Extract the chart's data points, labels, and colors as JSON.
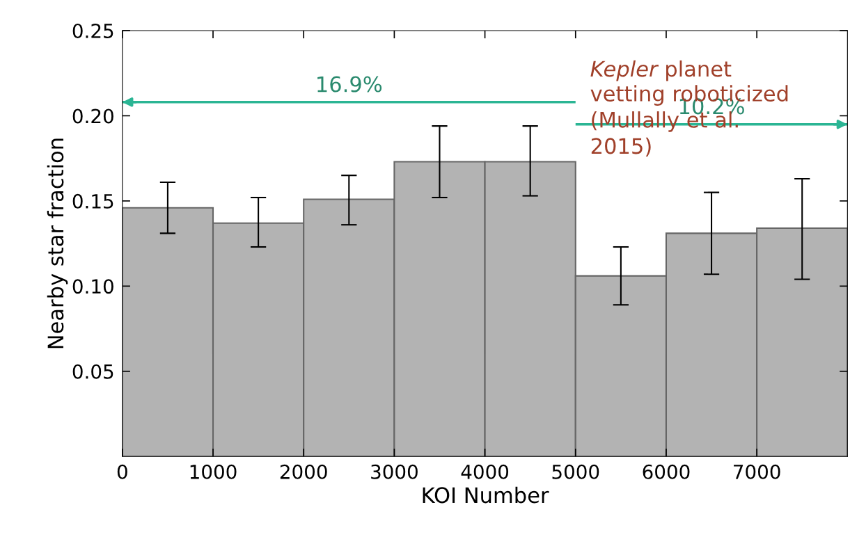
{
  "chart_data": {
    "type": "histogram",
    "xlabel": "KOI Number",
    "ylabel": "Nearby star fraction",
    "bins": [
      0,
      1000,
      2000,
      3000,
      4000,
      5000,
      6000,
      7000,
      8000
    ],
    "values": [
      0.146,
      0.137,
      0.151,
      0.173,
      0.173,
      0.106,
      0.131,
      0.134
    ],
    "errors": [
      [
        0.131,
        0.161
      ],
      [
        0.123,
        0.152
      ],
      [
        0.136,
        0.165
      ],
      [
        0.152,
        0.194
      ],
      [
        0.153,
        0.194
      ],
      [
        0.089,
        0.123
      ],
      [
        0.107,
        0.155
      ],
      [
        0.104,
        0.163
      ]
    ],
    "color": "#b3b3b3",
    "series": [
      {
        "type": "line",
        "name": "16.9%",
        "x": [
          5000,
          0
        ],
        "values": [
          0.208,
          0.208
        ],
        "color": "#2bb594"
      },
      {
        "type": "line",
        "name": "10.2%",
        "x": [
          5000,
          8000
        ],
        "values": [
          0.195,
          0.195
        ],
        "color": "#2bb594"
      }
    ],
    "xlim": [
      0,
      8000
    ],
    "ylim": [
      0,
      0.25
    ],
    "xticks": [
      0,
      1000,
      2000,
      3000,
      4000,
      5000,
      6000,
      7000
    ],
    "yticks": [
      {
        "value": 0.05,
        "label": "0.05"
      },
      {
        "value": 0.1,
        "label": "0.10"
      },
      {
        "value": 0.15,
        "label": "0.15"
      },
      {
        "value": 0.2,
        "label": "0.20"
      },
      {
        "value": 0.25,
        "label": "0.25"
      }
    ],
    "annotations": [
      "Kepler planet\nvetting roboticized\n(Mullally et al.\n2015)"
    ],
    "grid": false
  }
}
